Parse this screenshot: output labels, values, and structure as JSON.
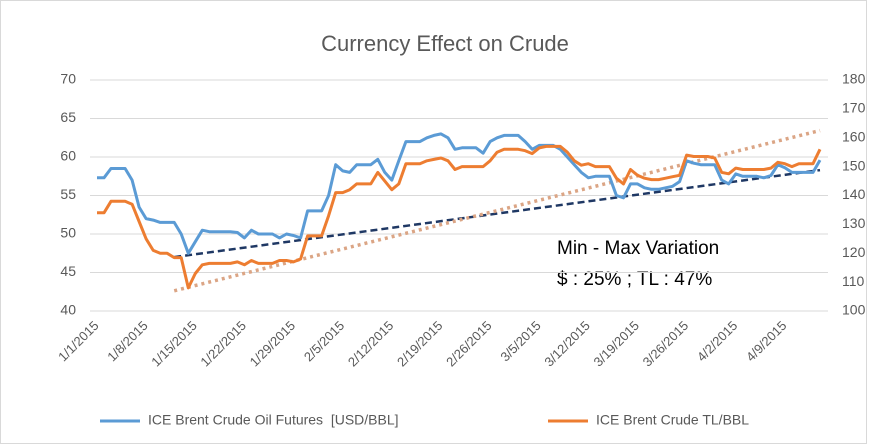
{
  "chart_data": {
    "type": "line",
    "title": "Currency Effect on Crude",
    "categories": [
      "1/1/2015",
      null,
      null,
      null,
      null,
      null,
      null,
      "1/8/2015",
      null,
      null,
      null,
      null,
      null,
      null,
      "1/15/2015",
      null,
      null,
      null,
      null,
      null,
      null,
      "1/22/2015",
      null,
      null,
      null,
      null,
      null,
      null,
      "1/29/2015",
      null,
      null,
      null,
      null,
      null,
      null,
      "2/5/2015",
      null,
      null,
      null,
      null,
      null,
      null,
      "2/12/2015",
      null,
      null,
      null,
      null,
      null,
      null,
      "2/19/2015",
      null,
      null,
      null,
      null,
      null,
      null,
      "2/26/2015",
      null,
      null,
      null,
      null,
      null,
      null,
      "3/5/2015",
      null,
      null,
      null,
      null,
      null,
      null,
      "3/12/2015",
      null,
      null,
      null,
      null,
      null,
      null,
      "3/19/2015",
      null,
      null,
      null,
      null,
      null,
      null,
      "3/26/2015",
      null,
      null,
      null,
      null,
      null,
      null,
      "4/2/2015",
      null,
      null,
      null,
      null,
      null,
      null,
      "4/9/2015",
      null,
      null,
      null,
      null,
      null
    ],
    "series": [
      {
        "name": "ICE Brent Crude Oil Futures  [USD/BBL]",
        "color": "#5b9bd5",
        "axis": "y",
        "values": [
          57.3,
          57.3,
          58.5,
          58.5,
          58.5,
          57,
          53.5,
          52,
          51.8,
          51.5,
          51.5,
          51.5,
          50,
          47.5,
          49,
          50.5,
          50.3,
          50.3,
          50.3,
          50.3,
          50.2,
          49.5,
          50.5,
          50,
          50,
          50,
          49.5,
          50,
          49.8,
          49.5,
          53,
          53,
          53,
          55,
          59,
          58.2,
          58,
          59,
          59,
          59,
          59.7,
          58,
          57,
          59.5,
          62,
          62,
          62,
          62.5,
          62.8,
          63,
          62.5,
          61,
          61.2,
          61.2,
          61.2,
          60.5,
          62,
          62.5,
          62.8,
          62.8,
          62.8,
          62,
          61,
          61.5,
          61.5,
          61.5,
          61,
          60,
          59,
          58,
          57.3,
          57.5,
          57.5,
          57.5,
          55,
          54.7,
          56.5,
          56.5,
          56,
          55.8,
          55.8,
          56,
          56.2,
          56.8,
          59.5,
          59.2,
          59,
          59,
          59,
          57,
          56.5,
          57.8,
          57.5,
          57.5,
          57.5,
          57.3,
          57.6,
          59,
          58.6,
          58,
          58,
          58,
          58,
          59.6
        ]
      },
      {
        "name": "ICE Brent Crude TL/BBL",
        "color": "#ed7d31",
        "axis": "y2",
        "values": [
          134,
          134,
          138,
          138,
          138,
          137,
          131,
          125,
          121,
          120,
          120,
          118.5,
          118.5,
          108,
          113,
          116,
          116.5,
          116.5,
          116.5,
          116.5,
          117,
          116,
          117.5,
          116.5,
          116.5,
          116.5,
          117.5,
          117.5,
          117,
          118,
          126,
          126,
          126,
          133,
          141,
          141,
          142,
          144,
          144,
          144,
          148,
          145,
          142,
          144,
          151,
          151,
          151,
          152,
          152.5,
          153,
          152,
          149,
          150,
          150,
          150,
          150,
          152,
          155,
          156,
          156,
          156,
          155.5,
          154.5,
          156.5,
          157,
          157,
          157,
          155,
          152,
          150.5,
          151,
          150,
          150,
          150,
          146,
          144,
          149,
          147,
          146,
          145.5,
          145.5,
          146,
          146.5,
          147,
          154,
          153.5,
          153.5,
          153.5,
          153,
          148,
          147.5,
          149.5,
          149,
          149,
          149,
          149,
          149.5,
          151.5,
          151,
          150,
          151,
          151,
          151,
          156
        ]
      }
    ],
    "trendlines": [
      {
        "axis": "y",
        "color": "#1f3864",
        "style": "dashed",
        "x": [
          11,
          103
        ],
        "values": [
          47,
          58.3
        ]
      },
      {
        "axis": "y2",
        "color": "#dba585",
        "style": "dotted",
        "x": [
          11,
          103
        ],
        "values": [
          107,
          162.5
        ]
      }
    ],
    "annotations": [
      "Min - Max  Variation",
      "$ : 25% ;   TL : 47%"
    ],
    "ylim": [
      40,
      70
    ],
    "yticks": [
      40,
      45,
      50,
      55,
      60,
      65,
      70
    ],
    "y2lim": [
      100,
      180
    ],
    "y2ticks": [
      100,
      110,
      120,
      130,
      140,
      150,
      160,
      170,
      180
    ],
    "grid": true,
    "legend": "bottom"
  }
}
